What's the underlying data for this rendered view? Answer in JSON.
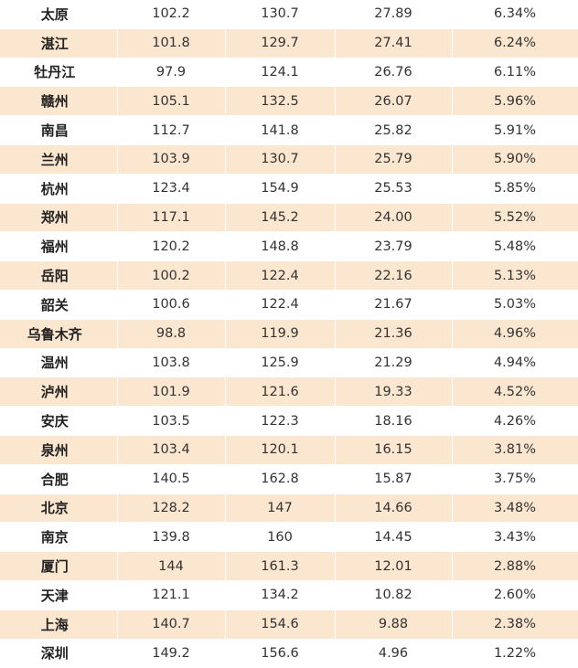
{
  "colors": {
    "stripe": "#fbe6cf",
    "plain": "#ffffff"
  },
  "rows": [
    [
      "太原",
      "102.2",
      "130.7",
      "27.89",
      "6.34%"
    ],
    [
      "湛江",
      "101.8",
      "129.7",
      "27.41",
      "6.24%"
    ],
    [
      "牡丹江",
      "97.9",
      "124.1",
      "26.76",
      "6.11%"
    ],
    [
      "赣州",
      "105.1",
      "132.5",
      "26.07",
      "5.96%"
    ],
    [
      "南昌",
      "112.7",
      "141.8",
      "25.82",
      "5.91%"
    ],
    [
      "兰州",
      "103.9",
      "130.7",
      "25.79",
      "5.90%"
    ],
    [
      "杭州",
      "123.4",
      "154.9",
      "25.53",
      "5.85%"
    ],
    [
      "郑州",
      "117.1",
      "145.2",
      "24.00",
      "5.52%"
    ],
    [
      "福州",
      "120.2",
      "148.8",
      "23.79",
      "5.48%"
    ],
    [
      "岳阳",
      "100.2",
      "122.4",
      "22.16",
      "5.13%"
    ],
    [
      "韶关",
      "100.6",
      "122.4",
      "21.67",
      "5.03%"
    ],
    [
      "乌鲁木齐",
      "98.8",
      "119.9",
      "21.36",
      "4.96%"
    ],
    [
      "温州",
      "103.8",
      "125.9",
      "21.29",
      "4.94%"
    ],
    [
      "泸州",
      "101.9",
      "121.6",
      "19.33",
      "4.52%"
    ],
    [
      "安庆",
      "103.5",
      "122.3",
      "18.16",
      "4.26%"
    ],
    [
      "泉州",
      "103.4",
      "120.1",
      "16.15",
      "3.81%"
    ],
    [
      "合肥",
      "140.5",
      "162.8",
      "15.87",
      "3.75%"
    ],
    [
      "北京",
      "128.2",
      "147",
      "14.66",
      "3.48%"
    ],
    [
      "南京",
      "139.8",
      "160",
      "14.45",
      "3.43%"
    ],
    [
      "厦门",
      "144",
      "161.3",
      "12.01",
      "2.88%"
    ],
    [
      "天津",
      "121.1",
      "134.2",
      "10.82",
      "2.60%"
    ],
    [
      "上海",
      "140.7",
      "154.6",
      "9.88",
      "2.38%"
    ],
    [
      "深圳",
      "149.2",
      "156.6",
      "4.96",
      "1.22%"
    ]
  ]
}
